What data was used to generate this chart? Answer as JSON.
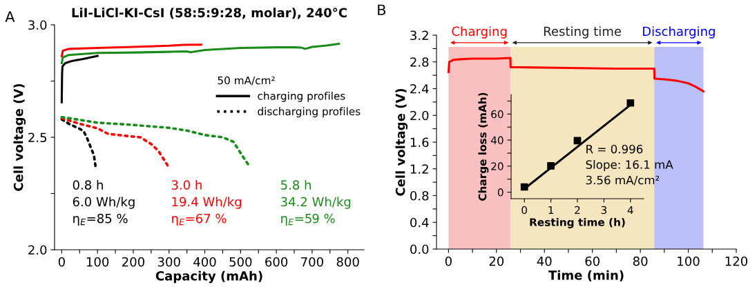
{
  "chart_data": [
    {
      "type": "line",
      "title": "LiI-LiCl-KI-CsI (58:5:9:28, molar), 240°C",
      "xlabel": "Capacity (mAh)",
      "ylabel": "Cell voltage (V)",
      "xlim": [
        -20,
        845
      ],
      "xticks": [
        0,
        {
          "value": 50,
          "label": null
        },
        100,
        {
          "value": 150,
          "label": null
        },
        200,
        {
          "value": 250,
          "label": null
        },
        300,
        {
          "value": 350,
          "label": null
        },
        400,
        {
          "value": 450,
          "label": null
        },
        500,
        {
          "value": 550,
          "label": null
        },
        600,
        {
          "value": 650,
          "label": null
        },
        700,
        {
          "value": 750,
          "label": null
        },
        800
      ],
      "ylim": [
        2.0,
        3.0
      ],
      "yticks": [
        {
          "value": 2.0,
          "label": "2.0"
        },
        {
          "value": 2.25,
          "label": null
        },
        2.5,
        {
          "value": 2.75,
          "label": null
        },
        {
          "value": 3.0,
          "label": "3.0"
        }
      ],
      "legend": "right",
      "legend_title": "50 mA/cm²",
      "series": [
        {
          "name": "charging profiles",
          "color": "#000000",
          "line_style": "solid",
          "x": [
            0,
            1,
            2,
            10,
            30,
            60,
            100
          ],
          "values": [
            2.656,
            2.78,
            2.815,
            2.83,
            2.84,
            2.848,
            2.862
          ]
        },
        {
          "name": "discharging profiles",
          "color": "#000000",
          "line_style": "dotted",
          "x": [
            0,
            20,
            40,
            60,
            70,
            80,
            90,
            95
          ],
          "values": [
            2.58,
            2.56,
            2.545,
            2.53,
            2.5,
            2.46,
            2.42,
            2.366
          ]
        },
        {
          "color": "#ff0000",
          "line_style": "solid",
          "x": [
            0,
            3,
            20,
            100,
            200,
            300,
            340,
            390
          ],
          "values": [
            2.86,
            2.885,
            2.893,
            2.897,
            2.902,
            2.907,
            2.911,
            2.912
          ]
        },
        {
          "color": "#ff0000",
          "line_style": "dotted",
          "x": [
            0,
            50,
            100,
            130,
            200,
            220,
            250,
            270,
            300
          ],
          "values": [
            2.585,
            2.56,
            2.54,
            2.515,
            2.503,
            2.5,
            2.47,
            2.44,
            2.365
          ]
        },
        {
          "color": "#1a8c1a",
          "line_style": "solid",
          "x": [
            0,
            3,
            20,
            100,
            200,
            300,
            350,
            360,
            400,
            500,
            600,
            650,
            670,
            680,
            700,
            740,
            775
          ],
          "values": [
            2.83,
            2.855,
            2.866,
            2.875,
            2.877,
            2.88,
            2.882,
            2.878,
            2.888,
            2.897,
            2.9,
            2.9,
            2.899,
            2.893,
            2.902,
            2.908,
            2.916
          ]
        },
        {
          "color": "#1a8c1a",
          "line_style": "dotted",
          "x": [
            0,
            100,
            200,
            300,
            350,
            400,
            450,
            480,
            500,
            525
          ],
          "values": [
            2.59,
            2.565,
            2.555,
            2.542,
            2.53,
            2.51,
            2.5,
            2.48,
            2.43,
            2.37
          ]
        }
      ],
      "annotations": [
        "A",
        "0.8 h\n6.0 Wh/kg\nη$_{E}$=85 %",
        "3.0 h\n19.4 Wh/kg\nη$_{E}$=67 %",
        "5.8 h\n34.2 Wh/kg\nη$_{E}$=59 %"
      ]
    },
    {
      "type": "line",
      "xlabel": "Time (min)",
      "ylabel": "Cell voltage (V)",
      "xlim": [
        -5,
        120
      ],
      "xticks": [
        0,
        {
          "value": 10,
          "label": null
        },
        20,
        {
          "value": 30,
          "label": null
        },
        40,
        {
          "value": 50,
          "label": null
        },
        60,
        {
          "value": 70,
          "label": null
        },
        80,
        {
          "value": 90,
          "label": null
        },
        100,
        {
          "value": 110,
          "label": null
        },
        120
      ],
      "ylim": [
        0,
        3.2
      ],
      "yticks": [
        {
          "value": 0,
          "label": "0.0"
        },
        {
          "value": 0.2,
          "label": null
        },
        0.4,
        {
          "value": 0.6,
          "label": null
        },
        0.8,
        {
          "value": 1.0,
          "label": null
        },
        1.2,
        {
          "value": 1.4,
          "label": null
        },
        1.6,
        {
          "value": 1.8,
          "label": null
        },
        {
          "value": 2.0,
          "label": "2.0"
        },
        {
          "value": 2.2,
          "label": null
        },
        2.4,
        {
          "value": 2.6,
          "label": null
        },
        2.8,
        {
          "value": 3.0,
          "label": null
        },
        3.2
      ],
      "bands": [
        {
          "axis": "x",
          "from": 0,
          "to": 25.8,
          "label": "Charging",
          "color": "#f8c0c0"
        },
        {
          "axis": "x",
          "from": 25.8,
          "to": 85.8,
          "label": "Resting time",
          "color": "#f5e6bf"
        },
        {
          "axis": "x",
          "from": 85.8,
          "to": 106.3,
          "label": "Discharging",
          "color": "#b9c0f8"
        }
      ],
      "series": [
        {
          "color": "#ff0000",
          "x": [
            0,
            0.3,
            2,
            5,
            10,
            20,
            25.8,
            25.9,
            30,
            50,
            70,
            85.8,
            85.9,
            90,
            95,
            100,
            103,
            106.3
          ],
          "values": [
            2.65,
            2.8,
            2.83,
            2.84,
            2.85,
            2.85,
            2.86,
            2.72,
            2.72,
            2.71,
            2.7,
            2.7,
            2.55,
            2.54,
            2.52,
            2.48,
            2.43,
            2.36
          ]
        }
      ],
      "annotations": [
        "B"
      ]
    },
    {
      "type": "scatter",
      "xlabel": "Resting time (h)",
      "ylabel": "Charge loss (mAh)",
      "xlim": [
        -0.5,
        4.5
      ],
      "xticks": [
        0,
        1,
        2,
        3,
        4
      ],
      "ylim": [
        -5,
        75
      ],
      "yticks": [
        0,
        {
          "value": 10,
          "label": null
        },
        20,
        {
          "value": 30,
          "label": null
        },
        40,
        {
          "value": 50,
          "label": null
        },
        60,
        {
          "value": 70,
          "label": null
        }
      ],
      "series": [
        {
          "type": "scatter",
          "marker": "square",
          "color": "#000000",
          "x": [
            0,
            1,
            2,
            4
          ],
          "values": [
            4,
            20.2,
            39.6,
            68.5
          ]
        },
        {
          "type": "line",
          "color": "#000000",
          "x": [
            0,
            4
          ],
          "values": [
            2.6,
            67
          ]
        }
      ],
      "annotations": [
        "R = 0.996\nSlope: 16.1 mA\n3.56 mA/cm²"
      ]
    }
  ]
}
